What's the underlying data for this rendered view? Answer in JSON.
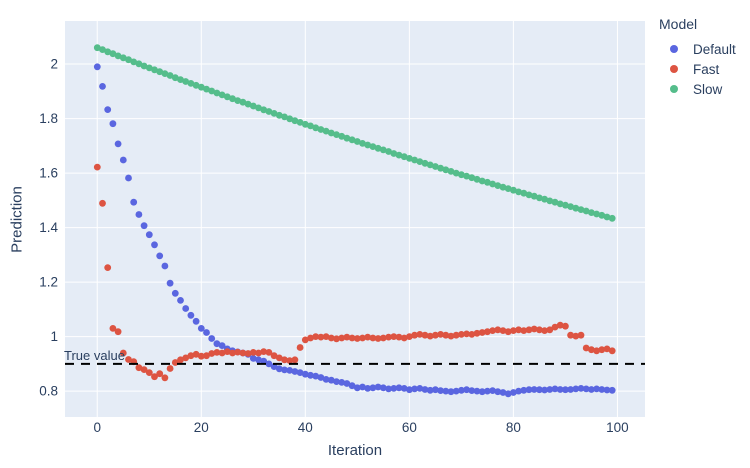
{
  "chart_data": {
    "type": "scatter",
    "title": "",
    "xlabel": "Iteration",
    "ylabel": "Prediction",
    "x_ticks": [
      "0",
      "20",
      "40",
      "60",
      "80",
      "100"
    ],
    "x_tick_values": [
      0,
      20,
      40,
      60,
      80,
      100
    ],
    "y_ticks": [
      "0.8",
      "1",
      "1.2",
      "1.4",
      "1.6",
      "1.8",
      "2"
    ],
    "y_tick_values": [
      0.8,
      1.0,
      1.2,
      1.4,
      1.6,
      1.8,
      2.0
    ],
    "xlim": [
      -6.2,
      105.3
    ],
    "ylim": [
      0.705,
      2.158
    ],
    "grid": true,
    "plot_bg": "#e5ecf6",
    "grid_color": "#ffffff",
    "font_color": "#2a3f5f",
    "marker_radius": 3.4,
    "legend": {
      "title": "Model",
      "position": "top-right-outside"
    },
    "reference_line": {
      "label": "True value",
      "y": 0.9,
      "style": "dashed",
      "color": "#000000",
      "width": 2
    },
    "x": [
      0,
      1,
      2,
      3,
      4,
      5,
      6,
      7,
      8,
      9,
      10,
      11,
      12,
      13,
      14,
      15,
      16,
      17,
      18,
      19,
      20,
      21,
      22,
      23,
      24,
      25,
      26,
      27,
      28,
      29,
      30,
      31,
      32,
      33,
      34,
      35,
      36,
      37,
      38,
      39,
      40,
      41,
      42,
      43,
      44,
      45,
      46,
      47,
      48,
      49,
      50,
      51,
      52,
      53,
      54,
      55,
      56,
      57,
      58,
      59,
      60,
      61,
      62,
      63,
      64,
      65,
      66,
      67,
      68,
      69,
      70,
      71,
      72,
      73,
      74,
      75,
      76,
      77,
      78,
      79,
      80,
      81,
      82,
      83,
      84,
      85,
      86,
      87,
      88,
      89,
      90,
      91,
      92,
      93,
      94,
      95,
      96,
      97,
      98,
      99
    ],
    "series": [
      {
        "name": "Default",
        "color": "#5a66e0",
        "values": [
          1.99,
          1.918,
          1.833,
          1.781,
          1.707,
          1.648,
          1.582,
          1.493,
          1.448,
          1.407,
          1.374,
          1.337,
          1.296,
          1.259,
          1.196,
          1.159,
          1.133,
          1.103,
          1.078,
          1.056,
          1.03,
          1.015,
          0.993,
          0.974,
          0.967,
          0.955,
          0.948,
          0.944,
          0.94,
          0.935,
          0.92,
          0.915,
          0.91,
          0.9,
          0.89,
          0.882,
          0.878,
          0.876,
          0.872,
          0.868,
          0.862,
          0.858,
          0.855,
          0.85,
          0.843,
          0.84,
          0.835,
          0.832,
          0.828,
          0.82,
          0.812,
          0.815,
          0.81,
          0.812,
          0.815,
          0.812,
          0.808,
          0.81,
          0.812,
          0.81,
          0.805,
          0.808,
          0.81,
          0.806,
          0.803,
          0.805,
          0.802,
          0.8,
          0.798,
          0.8,
          0.803,
          0.805,
          0.802,
          0.8,
          0.798,
          0.8,
          0.802,
          0.798,
          0.795,
          0.79,
          0.795,
          0.8,
          0.803,
          0.805,
          0.806,
          0.805,
          0.804,
          0.806,
          0.808,
          0.806,
          0.805,
          0.806,
          0.808,
          0.81,
          0.808,
          0.806,
          0.808,
          0.806,
          0.804,
          0.803
        ]
      },
      {
        "name": "Fast",
        "color": "#dd5442",
        "values": [
          1.622,
          1.489,
          1.253,
          1.03,
          1.018,
          0.94,
          0.916,
          0.908,
          0.886,
          0.879,
          0.868,
          0.853,
          0.864,
          0.849,
          0.883,
          0.905,
          0.915,
          0.922,
          0.93,
          0.935,
          0.928,
          0.93,
          0.938,
          0.942,
          0.94,
          0.945,
          0.94,
          0.943,
          0.94,
          0.938,
          0.942,
          0.94,
          0.945,
          0.942,
          0.93,
          0.922,
          0.915,
          0.912,
          0.915,
          0.96,
          0.988,
          0.995,
          1.0,
          0.998,
          1.0,
          0.995,
          0.992,
          0.995,
          0.998,
          0.995,
          0.993,
          0.995,
          0.998,
          0.995,
          0.993,
          0.995,
          0.998,
          1.0,
          0.998,
          0.995,
          1.0,
          1.005,
          1.008,
          1.005,
          1.002,
          1.005,
          1.008,
          1.005,
          1.002,
          1.005,
          1.008,
          1.01,
          1.008,
          1.012,
          1.015,
          1.018,
          1.022,
          1.025,
          1.022,
          1.018,
          1.022,
          1.025,
          1.022,
          1.025,
          1.028,
          1.025,
          1.022,
          1.025,
          1.035,
          1.042,
          1.038,
          1.005,
          1.002,
          1.005,
          0.958,
          0.952,
          0.948,
          0.952,
          0.955,
          0.948
        ]
      },
      {
        "name": "Slow",
        "color": "#55bd8b",
        "values": [
          2.06,
          2.053,
          2.045,
          2.038,
          2.03,
          2.023,
          2.016,
          2.008,
          2.001,
          1.993,
          1.986,
          1.979,
          1.972,
          1.965,
          1.958,
          1.95,
          1.943,
          1.936,
          1.929,
          1.922,
          1.915,
          1.908,
          1.901,
          1.894,
          1.887,
          1.88,
          1.873,
          1.866,
          1.86,
          1.853,
          1.846,
          1.839,
          1.832,
          1.826,
          1.819,
          1.812,
          1.806,
          1.799,
          1.792,
          1.786,
          1.779,
          1.773,
          1.766,
          1.76,
          1.754,
          1.747,
          1.741,
          1.735,
          1.728,
          1.722,
          1.716,
          1.709,
          1.703,
          1.697,
          1.691,
          1.685,
          1.679,
          1.672,
          1.666,
          1.66,
          1.654,
          1.648,
          1.642,
          1.636,
          1.63,
          1.624,
          1.618,
          1.612,
          1.606,
          1.6,
          1.594,
          1.589,
          1.583,
          1.577,
          1.571,
          1.566,
          1.56,
          1.554,
          1.548,
          1.543,
          1.537,
          1.531,
          1.526,
          1.52,
          1.515,
          1.509,
          1.504,
          1.498,
          1.493,
          1.487,
          1.482,
          1.477,
          1.471,
          1.466,
          1.461,
          1.455,
          1.45,
          1.445,
          1.439,
          1.434
        ]
      }
    ]
  }
}
